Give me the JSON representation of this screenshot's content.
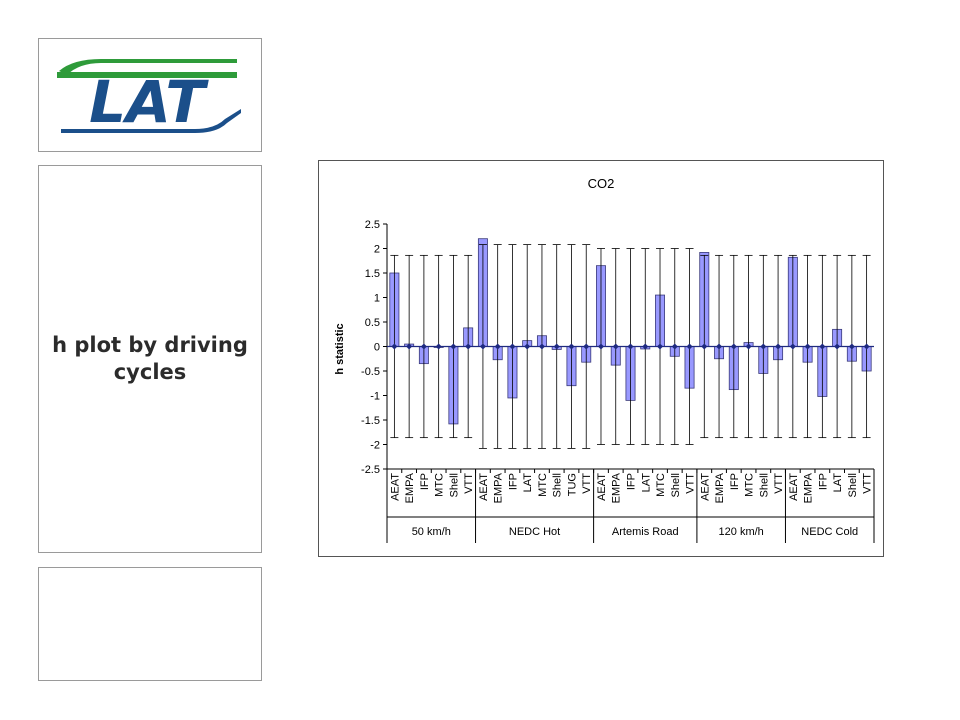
{
  "slide": {
    "title": "h plot by driving cycles",
    "logo_text": "LAT",
    "colors": {
      "logo_green": "#2e9b3a",
      "logo_blue": "#1b4f8a"
    }
  },
  "chart_data": {
    "type": "bar",
    "title": "CO2",
    "ylabel": "h statistic",
    "xlabel": "",
    "ylim": [
      -2.5,
      2.5
    ],
    "yticks": [
      "2.5",
      "2",
      "1.5",
      "1",
      "0.5",
      "0",
      "-0.5",
      "-1",
      "-1.5",
      "-2",
      "-2.5"
    ],
    "grid": false,
    "bar_color": "#9999ff",
    "groups": [
      {
        "name": "50 km/h",
        "categories": [
          "AEAT",
          "EMPA",
          "IFP",
          "MTC",
          "Shell",
          "VTT"
        ],
        "values": [
          1.5,
          0.05,
          -0.35,
          0.0,
          -1.58,
          0.38
        ],
        "err_upper": 1.86,
        "err_lower": -1.86
      },
      {
        "name": "NEDC Hot",
        "categories": [
          "AEAT",
          "EMPA",
          "IFP",
          "LAT",
          "MTC",
          "Shell",
          "TUG",
          "VTT"
        ],
        "values": [
          2.2,
          -0.27,
          -1.05,
          0.12,
          0.22,
          -0.06,
          -0.8,
          -0.32
        ],
        "err_upper": 2.08,
        "err_lower": -2.08
      },
      {
        "name": "Artemis Road",
        "categories": [
          "AEAT",
          "EMPA",
          "IFP",
          "LAT",
          "MTC",
          "Shell",
          "VTT"
        ],
        "values": [
          1.65,
          -0.38,
          -1.1,
          -0.05,
          1.05,
          -0.2,
          -0.85
        ],
        "err_upper": 2.0,
        "err_lower": -2.0
      },
      {
        "name": "120 km/h",
        "categories": [
          "AEAT",
          "EMPA",
          "IFP",
          "MTC",
          "Shell",
          "VTT"
        ],
        "values": [
          1.92,
          -0.25,
          -0.88,
          0.08,
          -0.55,
          -0.27
        ],
        "err_upper": 1.86,
        "err_lower": -1.86
      },
      {
        "name": "NEDC Cold",
        "categories": [
          "AEAT",
          "EMPA",
          "IFP",
          "LAT",
          "Shell",
          "VTT"
        ],
        "values": [
          1.82,
          -0.32,
          -1.02,
          0.35,
          -0.3,
          -0.5
        ],
        "err_upper": 1.86,
        "err_lower": -1.86
      }
    ]
  }
}
